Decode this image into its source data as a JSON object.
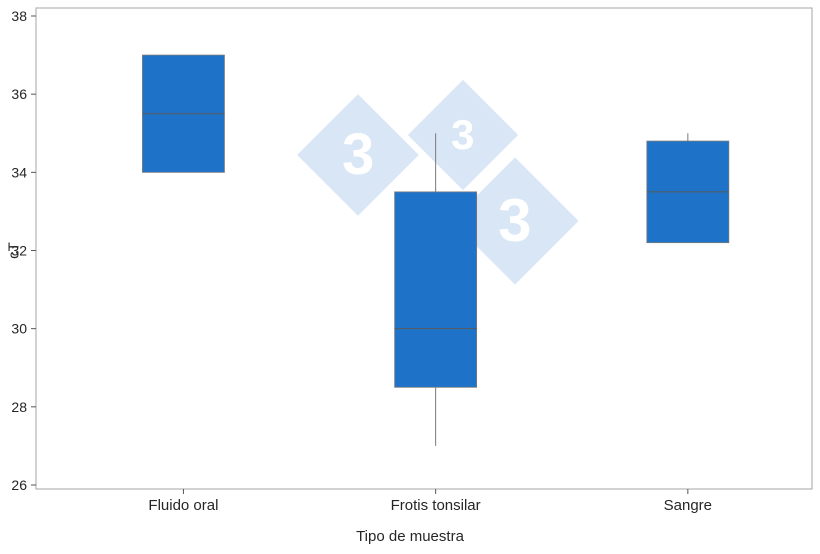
{
  "chart_data": {
    "type": "boxplot",
    "title": "",
    "xlabel": "Tipo de muestra",
    "ylabel": "cT",
    "ylim": [
      26,
      38
    ],
    "yticks": [
      26,
      28,
      30,
      32,
      34,
      36,
      38
    ],
    "categories": [
      "Fluido oral",
      "Frotis tonsilar",
      "Sangre"
    ],
    "series": [
      {
        "name": "Fluido oral",
        "min": 34,
        "q1": 34,
        "median": 35.5,
        "q3": 37,
        "max": 37
      },
      {
        "name": "Frotis tonsilar",
        "min": 27,
        "q1": 28.5,
        "median": 30,
        "q3": 33.5,
        "max": 35
      },
      {
        "name": "Sangre",
        "min": 32.2,
        "q1": 32.2,
        "median": 33.5,
        "q3": 34.8,
        "max": 35
      }
    ],
    "grid": false,
    "legend": false,
    "box_color": "#1e73c9",
    "box_stroke": "#7a7a7a",
    "median_color": "#5a5a5a",
    "whisker_color": "#7a7a7a",
    "panel_border_color": "#a6a6a6",
    "text_color": "#262626"
  },
  "watermark": {
    "glyphs": [
      "3",
      "3",
      "3"
    ],
    "diamond_color": "#d9e6f5",
    "text_color": "#ffffff"
  }
}
